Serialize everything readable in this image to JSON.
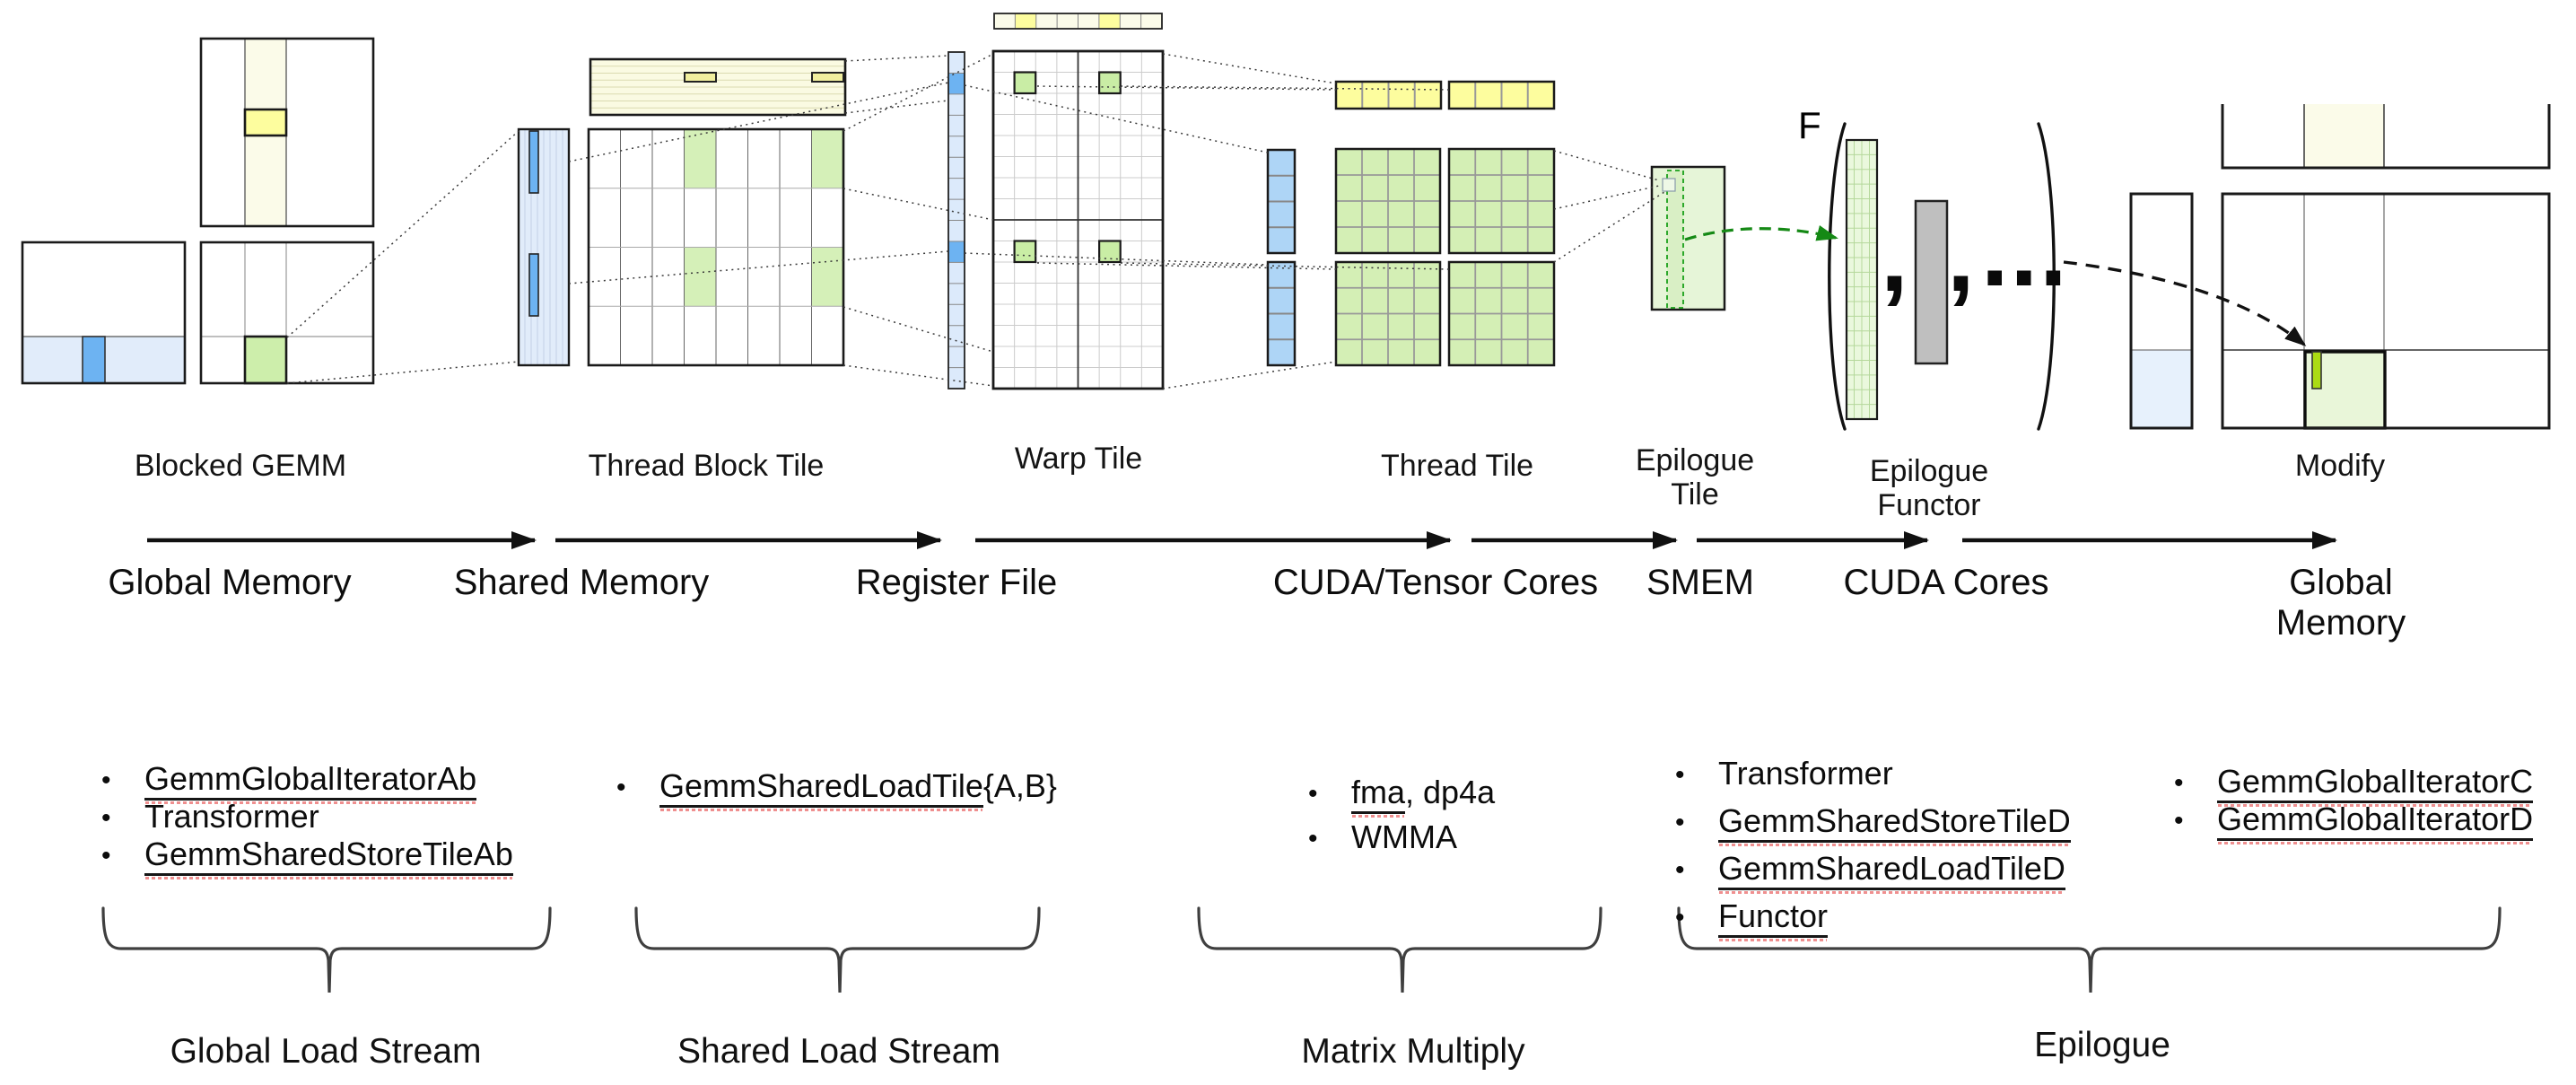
{
  "stages": {
    "blocked_gemm": "Blocked GEMM",
    "thread_block_tile": "Thread Block Tile",
    "warp_tile": "Warp Tile",
    "thread_tile": "Thread Tile",
    "epilogue_tile": "Epilogue\nTile",
    "epilogue_functor": "Epilogue\nFunctor",
    "modify": "Modify"
  },
  "memory_flow": {
    "labels": [
      "Global Memory",
      "Shared Memory",
      "Register File",
      "CUDA/Tensor Cores",
      "SMEM",
      "CUDA Cores",
      "Global Memory"
    ]
  },
  "functor": {
    "symbol": "F",
    "separator": ",",
    "ellipsis": "..."
  },
  "bullet": "•",
  "component_lists": [
    {
      "items": [
        {
          "u": "GemmGlobalIteratorAb",
          "plain": ""
        },
        {
          "u": "",
          "plain": "Transformer"
        },
        {
          "u": "GemmSharedStoreTileAb",
          "plain": ""
        }
      ]
    },
    {
      "items": [
        {
          "u": "GemmSharedLoadTile",
          "plain": "{A,B}"
        }
      ]
    },
    {
      "items": [
        {
          "u": "fma",
          "plain": ", dp4a"
        },
        {
          "u": "",
          "plain": "WMMA"
        }
      ]
    },
    {
      "items": [
        {
          "u": "",
          "plain": "Transformer"
        },
        {
          "u": "GemmSharedStoreTileD",
          "plain": ""
        },
        {
          "u": "GemmSharedLoadTileD",
          "plain": ""
        },
        {
          "u": "Functor",
          "plain": ""
        }
      ]
    },
    {
      "items": [
        {
          "u": "GemmGlobalIteratorC",
          "plain": ""
        },
        {
          "u": "GemmGlobalIteratorD",
          "plain": ""
        }
      ]
    }
  ],
  "groups": [
    "Global Load Stream",
    "Shared Load Stream",
    "Matrix Multiply",
    "Epilogue"
  ],
  "colors": {
    "highlight_blue": "#6db3f2",
    "pale_blue": "#e1ecfa",
    "thread_blue": "#aed5f6",
    "bright_yellow": "#fdfd9e",
    "pale_yellow": "#fbfbe9",
    "green_cell": "#cdeeab",
    "warp_green": "#c9eda5",
    "thread_green": "#d4efb5",
    "pale_green": "#e6f5d8",
    "chartreuse": "#abdb13",
    "gray_bar": "#bfbfbf",
    "arrow_green": "#158915"
  }
}
